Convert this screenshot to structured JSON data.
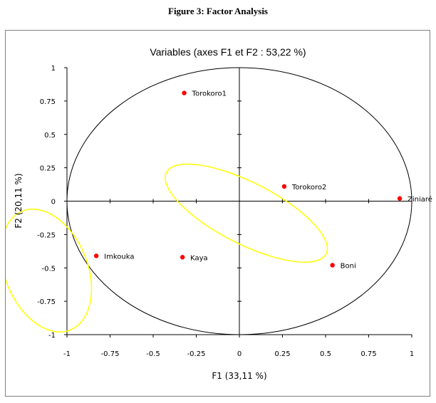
{
  "figure_title": "Figure 3: Factor Analysis",
  "colors": {
    "point": "#ff0000",
    "highlight": "#ffff00",
    "circle": "#000000",
    "axis": "#000000"
  },
  "chart_data": {
    "type": "scatter",
    "title": "Variables (axes F1 et F2 : 53,22 %)",
    "xlabel": "F1 (33,11 %)",
    "ylabel": "F2 (20,11 %)",
    "xlim": [
      -1,
      1
    ],
    "ylim": [
      -1,
      1
    ],
    "xticks": [
      -1,
      -0.75,
      -0.5,
      -0.25,
      0,
      0.25,
      0.5,
      0.75,
      1
    ],
    "yticks": [
      -1,
      -0.75,
      -0.5,
      -0.25,
      0,
      0.25,
      0.5,
      0.75,
      1
    ],
    "xtick_labels": [
      "-1",
      "-0.75",
      "-0.5",
      "-0.25",
      "0",
      "0.25",
      "0.5",
      "0.75",
      "1"
    ],
    "ytick_labels": [
      "-1",
      "-0.75",
      "-0.5",
      "-0.25",
      "0",
      "0.25",
      "0.5",
      "0.75",
      "1"
    ],
    "correlation_circle": true,
    "grid": false,
    "points": [
      {
        "label": "Torokoro1",
        "x": -0.32,
        "y": 0.81
      },
      {
        "label": "Torokoro2",
        "x": 0.26,
        "y": 0.11
      },
      {
        "label": "Ziniaré",
        "x": 0.93,
        "y": 0.02
      },
      {
        "label": "Imkouka",
        "x": -0.83,
        "y": -0.41
      },
      {
        "label": "Kaya",
        "x": -0.33,
        "y": -0.42
      },
      {
        "label": "Boni",
        "x": 0.54,
        "y": -0.48
      }
    ],
    "highlight_ellipses": [
      {
        "cx": 0.04,
        "cy": -0.09,
        "rx": 0.52,
        "ry": 0.23,
        "rotation_deg": 27
      },
      {
        "cx": -1.12,
        "cy": -0.52,
        "rx": 0.24,
        "ry": 0.48,
        "rotation_deg": -22
      }
    ]
  }
}
